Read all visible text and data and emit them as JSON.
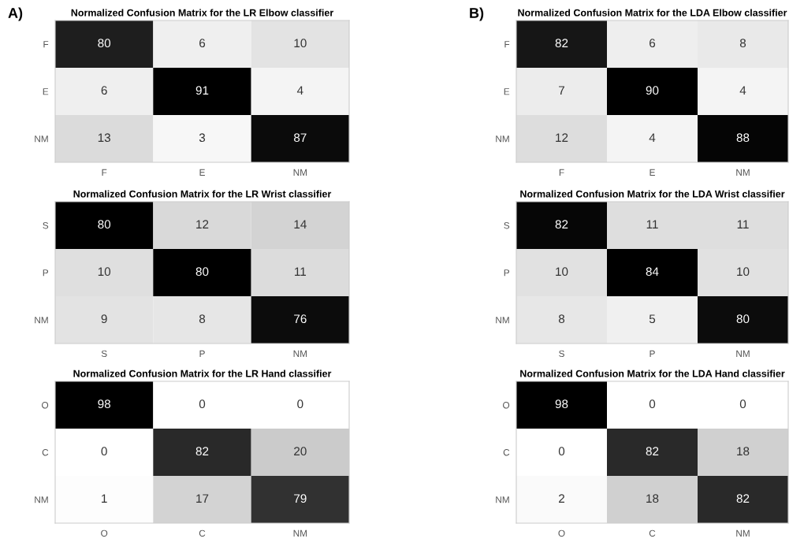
{
  "chart_data": [
    {
      "type": "heatmap",
      "title": "Normalized Confusion Matrix for the LR Elbow classifier",
      "annotations": [
        "A)"
      ],
      "categories": [
        "F",
        "E",
        "NM"
      ],
      "y_categories": [
        "F",
        "E",
        "NM"
      ],
      "data_labels": true,
      "cells": [
        [
          80,
          6,
          10
        ],
        [
          6,
          91,
          4
        ],
        [
          13,
          3,
          87
        ]
      ]
    },
    {
      "type": "heatmap",
      "title": "Normalized Confusion Matrix for the LDA Elbow classifier",
      "annotations": [
        "B)"
      ],
      "categories": [
        "F",
        "E",
        "NM"
      ],
      "y_categories": [
        "F",
        "E",
        "NM"
      ],
      "data_labels": true,
      "cells": [
        [
          82,
          6,
          8
        ],
        [
          7,
          90,
          4
        ],
        [
          12,
          4,
          88
        ]
      ]
    },
    {
      "type": "heatmap",
      "title": "Normalized Confusion Matrix for the LR Wrist classifier",
      "categories": [
        "S",
        "P",
        "NM"
      ],
      "y_categories": [
        "S",
        "P",
        "NM"
      ],
      "data_labels": true,
      "cells": [
        [
          80,
          12,
          14
        ],
        [
          10,
          80,
          11
        ],
        [
          9,
          8,
          76
        ]
      ]
    },
    {
      "type": "heatmap",
      "title": "Normalized Confusion Matrix for the LDA Wrist classifier",
      "categories": [
        "S",
        "P",
        "NM"
      ],
      "y_categories": [
        "S",
        "P",
        "NM"
      ],
      "data_labels": true,
      "cells": [
        [
          82,
          11,
          11
        ],
        [
          10,
          84,
          10
        ],
        [
          8,
          5,
          80
        ]
      ]
    },
    {
      "type": "heatmap",
      "title": "Normalized Confusion Matrix for the LR Hand classifier",
      "categories": [
        "O",
        "C",
        "NM"
      ],
      "y_categories": [
        "O",
        "C",
        "NM"
      ],
      "data_labels": true,
      "cells": [
        [
          98,
          0,
          0
        ],
        [
          0,
          82,
          20
        ],
        [
          1,
          17,
          79
        ]
      ]
    },
    {
      "type": "heatmap",
      "title": "Normalized Confusion Matrix for the LDA Hand classifier",
      "categories": [
        "O",
        "C",
        "NM"
      ],
      "y_categories": [
        "O",
        "C",
        "NM"
      ],
      "data_labels": true,
      "cells": [
        [
          98,
          0,
          0
        ],
        [
          0,
          82,
          18
        ],
        [
          2,
          18,
          82
        ]
      ]
    }
  ]
}
